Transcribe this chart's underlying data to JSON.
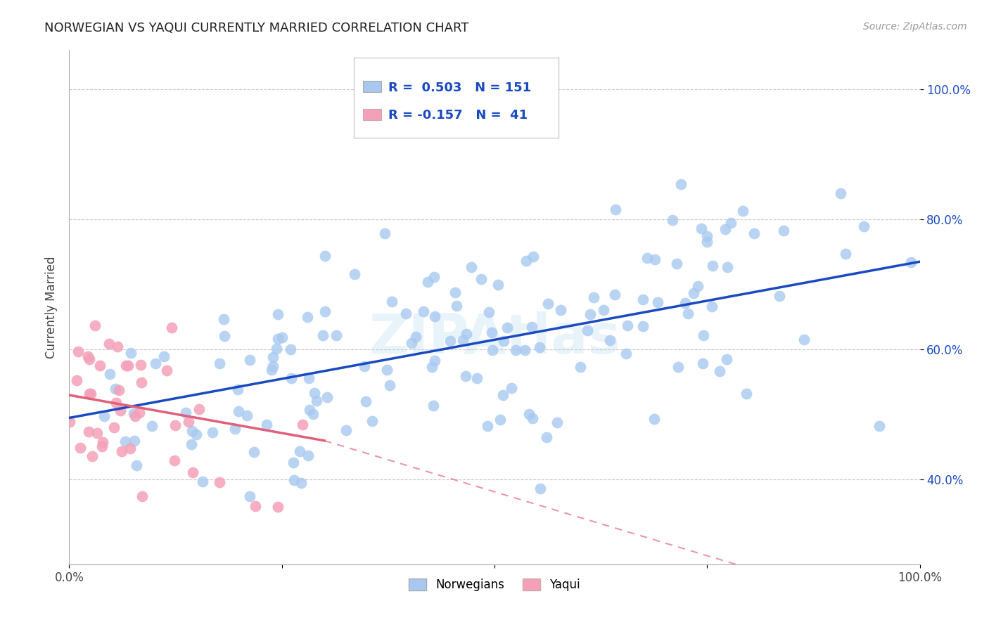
{
  "title": "NORWEGIAN VS YAQUI CURRENTLY MARRIED CORRELATION CHART",
  "source": "Source: ZipAtlas.com",
  "ylabel": "Currently Married",
  "xmin": 0.0,
  "xmax": 1.0,
  "ymin": 0.27,
  "ymax": 1.06,
  "yticks": [
    0.4,
    0.6,
    0.8,
    1.0
  ],
  "ytick_labels": [
    "40.0%",
    "60.0%",
    "80.0%",
    "100.0%"
  ],
  "xticks": [
    0.0,
    0.25,
    0.5,
    0.75,
    1.0
  ],
  "xtick_labels": [
    "0.0%",
    "",
    "",
    "",
    "100.0%"
  ],
  "norwegian_R": 0.503,
  "norwegian_N": 151,
  "yaqui_R": -0.157,
  "yaqui_N": 41,
  "blue_dot_color": "#A8C8F0",
  "pink_dot_color": "#F4A0B8",
  "blue_line_color": "#1A4AC0",
  "pink_line_color": "#E0607A",
  "background_color": "#FFFFFF",
  "grid_color": "#C8C8C8",
  "title_fontsize": 13,
  "watermark_text": "ZIPAtlas",
  "legend_label_norwegian": "Norwegians",
  "legend_label_yaqui": "Yaqui",
  "nor_seed": 7,
  "yaq_seed": 13,
  "blue_line_start_y": 0.495,
  "blue_line_end_y": 0.735,
  "pink_line_start_y": 0.53,
  "pink_line_end_x_solid": 0.3,
  "pink_line_end_y_solid": 0.46,
  "pink_line_end_x_dash": 1.0,
  "pink_line_end_y_dash": 0.185
}
